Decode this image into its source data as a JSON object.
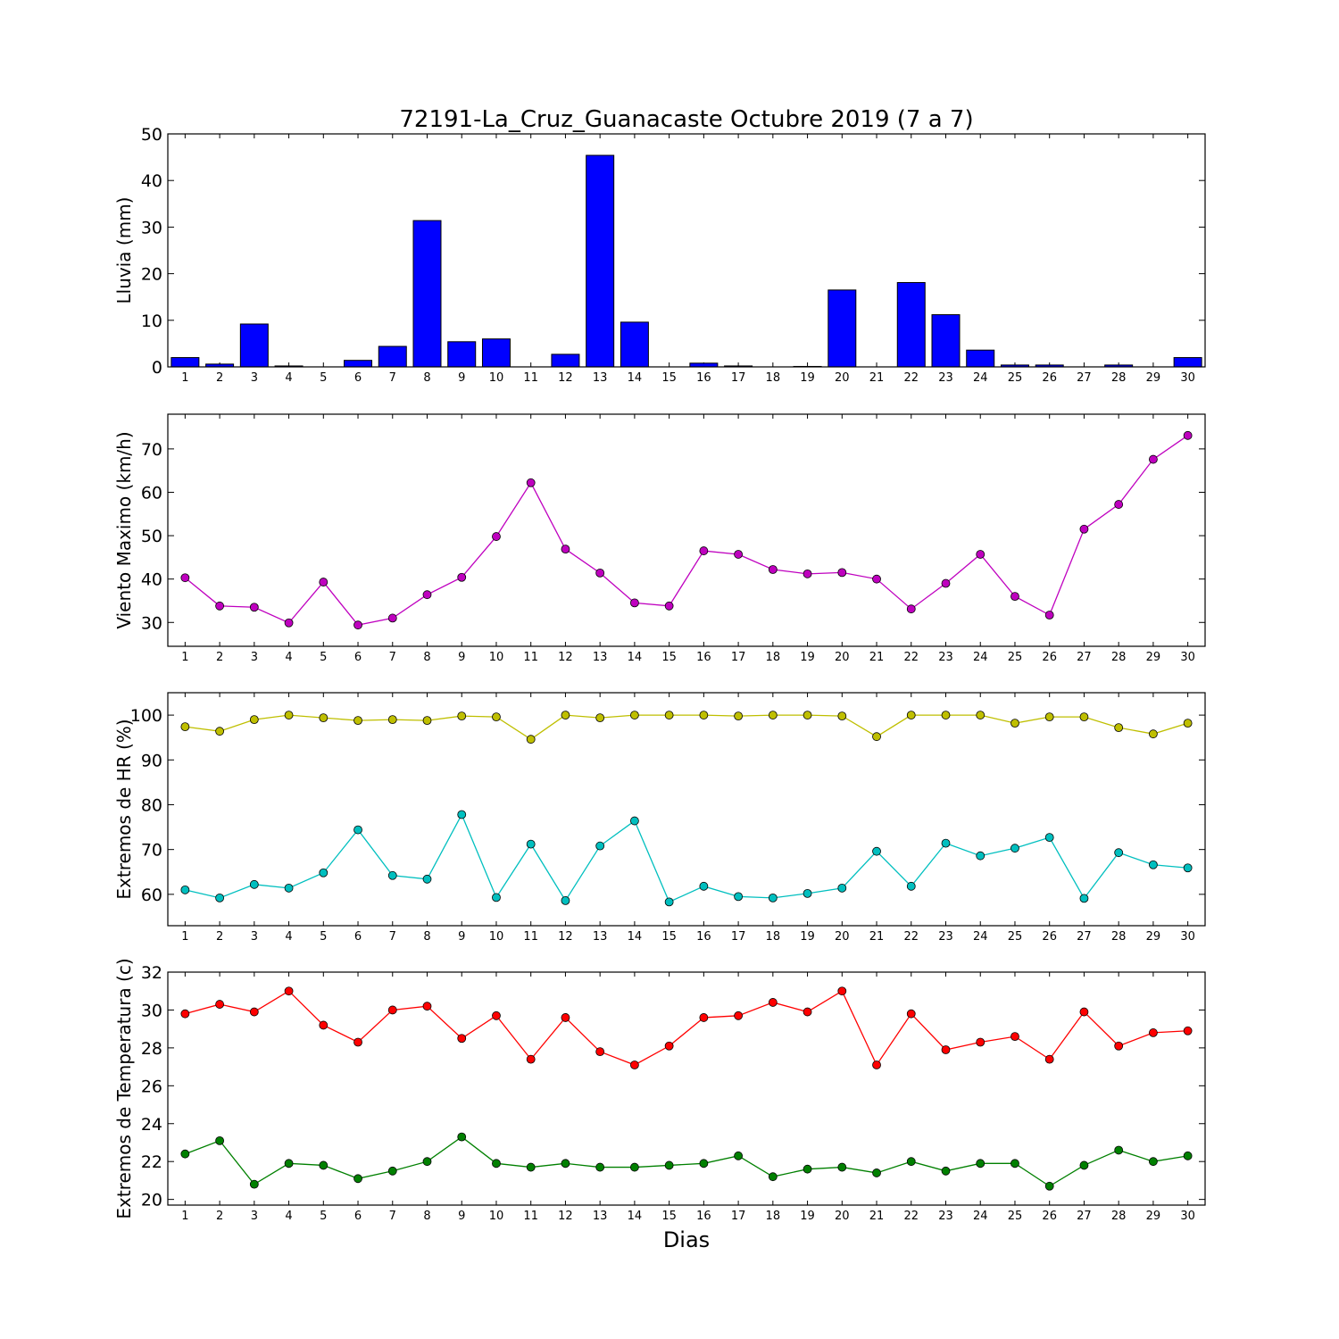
{
  "chart_data": [
    {
      "type": "bar",
      "title": "72191-La_Cruz_Guanacaste Octubre 2019  (7 a 7)",
      "ylabel": "Lluvia (mm)",
      "xlabel": "",
      "categories": [
        "1",
        "2",
        "3",
        "4",
        "5",
        "6",
        "7",
        "8",
        "9",
        "10",
        "11",
        "12",
        "13",
        "14",
        "15",
        "16",
        "17",
        "18",
        "19",
        "20",
        "21",
        "22",
        "23",
        "24",
        "25",
        "26",
        "27",
        "28",
        "29",
        "30"
      ],
      "values": [
        2.0,
        0.6,
        9.2,
        0.2,
        0.0,
        1.4,
        4.4,
        31.4,
        5.4,
        6.0,
        0.0,
        2.7,
        45.4,
        9.6,
        0.0,
        0.8,
        0.2,
        0.0,
        0.1,
        16.5,
        0.0,
        18.1,
        11.2,
        3.6,
        0.4,
        0.4,
        0.0,
        0.4,
        0.0,
        2.0
      ],
      "color": "#0000ff",
      "ylim": [
        0,
        50
      ],
      "yticks": [
        0,
        10,
        20,
        30,
        40,
        50
      ]
    },
    {
      "type": "line",
      "title": "",
      "ylabel": "Viento Maximo (km/h)",
      "xlabel": "",
      "x": [
        1,
        2,
        3,
        4,
        5,
        6,
        7,
        8,
        9,
        10,
        11,
        12,
        13,
        14,
        15,
        16,
        17,
        18,
        19,
        20,
        21,
        22,
        23,
        24,
        25,
        26,
        27,
        28,
        29,
        30
      ],
      "series": [
        {
          "values": [
            40.3,
            33.8,
            33.5,
            29.9,
            39.3,
            29.4,
            31.0,
            36.4,
            40.4,
            49.8,
            62.2,
            46.9,
            41.4,
            34.5,
            33.8,
            46.5,
            45.7,
            42.2,
            41.2,
            41.5,
            40.0,
            33.1,
            39.0,
            45.7,
            36.0,
            31.7,
            51.5,
            57.2,
            67.6,
            73.1
          ],
          "color": "#bf00bf"
        }
      ],
      "ylim": [
        24.5,
        78
      ],
      "yticks": [
        30,
        40,
        50,
        60,
        70
      ]
    },
    {
      "type": "line",
      "title": "",
      "ylabel": "Extremos de HR (%)",
      "xlabel": "",
      "x": [
        1,
        2,
        3,
        4,
        5,
        6,
        7,
        8,
        9,
        10,
        11,
        12,
        13,
        14,
        15,
        16,
        17,
        18,
        19,
        20,
        21,
        22,
        23,
        24,
        25,
        26,
        27,
        28,
        29,
        30
      ],
      "series": [
        {
          "values": [
            97.4,
            96.4,
            99.0,
            100.0,
            99.4,
            98.8,
            99.0,
            98.8,
            99.8,
            99.6,
            94.6,
            100.0,
            99.4,
            100.0,
            100.0,
            100.0,
            99.8,
            100.0,
            100.0,
            99.8,
            95.2,
            100.0,
            100.0,
            100.0,
            98.2,
            99.6,
            99.6,
            97.2,
            95.8,
            98.2
          ],
          "color": "#bfbf00"
        },
        {
          "values": [
            61.0,
            59.2,
            62.2,
            61.4,
            64.8,
            74.4,
            64.2,
            63.4,
            77.8,
            59.3,
            71.2,
            58.6,
            70.8,
            76.4,
            58.3,
            61.8,
            59.5,
            59.2,
            60.2,
            61.4,
            69.6,
            61.8,
            71.4,
            68.6,
            70.3,
            72.7,
            59.1,
            69.3,
            66.6,
            65.9
          ],
          "color": "#00bfbf"
        }
      ],
      "ylim": [
        53,
        105
      ],
      "yticks": [
        60,
        70,
        80,
        90,
        100
      ]
    },
    {
      "type": "line",
      "title": "",
      "ylabel": "Extremos de Temperatura (c)",
      "xlabel": "Dias",
      "x": [
        1,
        2,
        3,
        4,
        5,
        6,
        7,
        8,
        9,
        10,
        11,
        12,
        13,
        14,
        15,
        16,
        17,
        18,
        19,
        20,
        21,
        22,
        23,
        24,
        25,
        26,
        27,
        28,
        29,
        30
      ],
      "series": [
        {
          "values": [
            29.8,
            30.3,
            29.9,
            31.0,
            29.2,
            28.3,
            30.0,
            30.2,
            28.5,
            29.7,
            27.4,
            29.6,
            27.8,
            27.1,
            28.1,
            29.6,
            29.7,
            30.4,
            29.9,
            31.0,
            27.1,
            29.8,
            27.9,
            28.3,
            28.6,
            27.4,
            29.9,
            28.1,
            28.8,
            28.9
          ],
          "color": "#ff0000"
        },
        {
          "values": [
            22.4,
            23.1,
            20.8,
            21.9,
            21.8,
            21.1,
            21.5,
            22.0,
            23.3,
            21.9,
            21.7,
            21.9,
            21.7,
            21.7,
            21.8,
            21.9,
            22.3,
            21.2,
            21.6,
            21.7,
            21.4,
            22.0,
            21.5,
            21.9,
            21.9,
            20.7,
            21.8,
            22.6,
            22.0,
            22.3
          ],
          "color": "#008000"
        }
      ],
      "ylim": [
        19.7,
        32
      ],
      "yticks": [
        20,
        22,
        24,
        26,
        28,
        30,
        32
      ]
    }
  ]
}
